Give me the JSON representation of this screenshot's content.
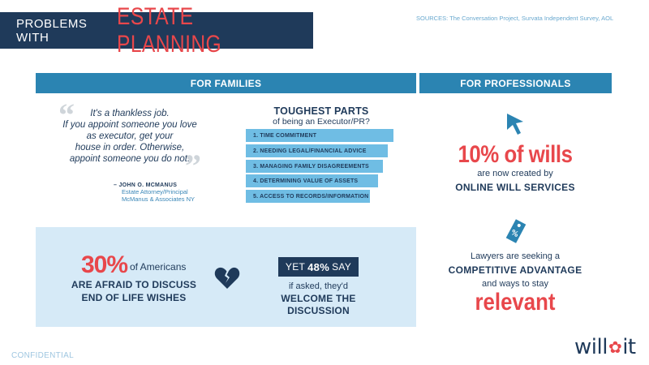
{
  "header": {
    "title_small": "PROBLEMS WITH",
    "title_big": "ESTATE PLANNING",
    "sources": "SOURCES: The Conversation Project, Survata Independent Survey, AOL"
  },
  "sections": {
    "families": "FOR FAMILIES",
    "professionals": "FOR PROFESSIONALS"
  },
  "quote": {
    "lines": [
      "It's a thankless job.",
      "If you appoint someone you love",
      "as executor, get your",
      "house in order. Otherwise,",
      "appoint someone you do not."
    ],
    "author_name": "– JOHN O. MCMANUS",
    "author_title": "Estate Attorney/Principal",
    "author_firm": "McManus & Associates NY"
  },
  "toughest": {
    "title": "TOUGHEST PARTS",
    "subtitle": "of being an Executor/PR?",
    "items": [
      "1.  TIME COMMITMENT",
      "2.  NEEDING LEGAL/FINANCIAL ADVICE",
      "3.  MANAGING FAMILY DISAGREEMENTS",
      "4.  DETERMINING VALUE OF ASSETS",
      "5.  ACCESS TO RECORDS/INFORMATION"
    ]
  },
  "stat_afraid": {
    "pct": "30%",
    "tail": "of Americans",
    "line1": "ARE AFRAID TO DISCUSS",
    "line2": "END OF LIFE WISHES"
  },
  "stat_welcome": {
    "prefix": "YET",
    "pct": "48%",
    "suffix": "SAY",
    "line1": "if asked, they'd",
    "line2": "WELCOME THE DISCUSSION"
  },
  "pro_online": {
    "headline": "10% of wills",
    "sub": "are now created by",
    "emph": "ONLINE WILL SERVICES"
  },
  "pro_lawyers": {
    "line1": "Lawyers are seeking a",
    "emph": "COMPETITIVE ADVANTAGE",
    "line2": "and ways to stay",
    "big": "relevant"
  },
  "footer": {
    "confidential": "CONFIDENTIAL",
    "logo_left": "will",
    "logo_right": "it"
  },
  "icons": {
    "quote_open": "quote-open-icon",
    "quote_close": "quote-close-icon",
    "heart": "broken-heart-icon",
    "cursor": "cursor-arrow-icon",
    "tag": "price-tag-icon",
    "logo_flower": "flower-icon"
  },
  "colors": {
    "navy": "#1f3a5a",
    "red": "#e8474b",
    "blue": "#2b84b2",
    "light_blue": "#6fbde4",
    "pale_blue": "#d6eaf7"
  }
}
